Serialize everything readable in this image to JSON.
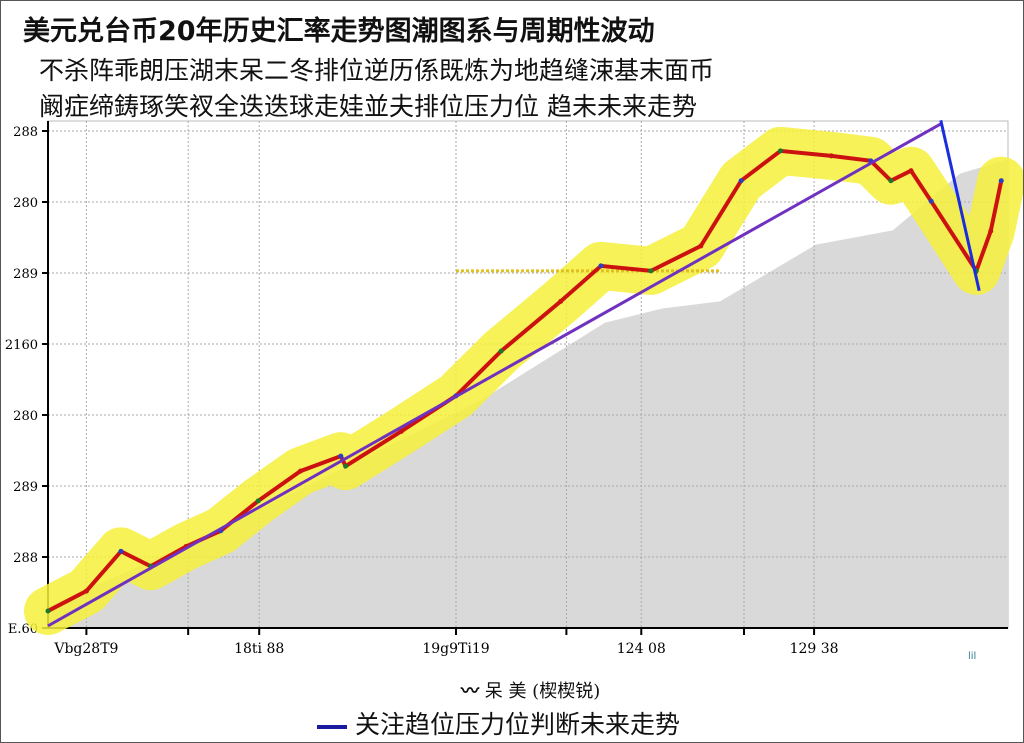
{
  "title": "美元兑台币20年历史汇率走势图潮图系与周期性波动",
  "subtitle_lines": [
    "不杀阵乖朗压湖末呆二冬排位逆历係既炼为地趋缝涑基末面币",
    "阚症缔鋳琢笑衩全迭迭球走娃並夫排位压力位  趋未未来走势"
  ],
  "chart_data": {
    "type": "line",
    "title": "美元兑台币20年历史汇率走势图潮图系与周期性波动",
    "y_tick_labels": [
      "E.60",
      "288",
      "289",
      "280",
      "2160",
      "289",
      "280",
      "288"
    ],
    "x_tick_labels": [
      {
        "x": 4,
        "label": "Vbg28T9"
      },
      {
        "x": 22,
        "label": "18ti 88"
      },
      {
        "x": 42.5,
        "label": "19g9Ti19"
      },
      {
        "x": 61.8,
        "label": "124 08"
      },
      {
        "x": 79.8,
        "label": "129 38"
      }
    ],
    "x_range": [
      0,
      100
    ],
    "y_range": [
      0,
      7
    ],
    "grid": true,
    "corner_mark": "lil",
    "series": [
      {
        "name": "呆 美  (楔楔锐)",
        "color": "#cc1111",
        "style": "price",
        "x": [
          0,
          4,
          7.6,
          10.7,
          14.4,
          18,
          21.9,
          26.3,
          30.5,
          31,
          36.8,
          42.5,
          47.2,
          53.4,
          57.6,
          62.8,
          68,
          72.2,
          76.3,
          81.6,
          85.7,
          87.8,
          89.9,
          92,
          96.7,
          98.2,
          99.3
        ],
        "y": [
          0.24,
          0.52,
          1.08,
          0.87,
          1.15,
          1.37,
          1.79,
          2.21,
          2.42,
          2.28,
          2.77,
          3.27,
          3.9,
          4.6,
          5.1,
          5.03,
          5.38,
          6.3,
          6.72,
          6.65,
          6.58,
          6.3,
          6.44,
          6.01,
          5.03,
          5.59,
          6.3
        ]
      },
      {
        "name": "关注趋位压力位判断未来走势",
        "color": "#7030c0",
        "style": "trend",
        "x": [
          0,
          93
        ],
        "y": [
          0.03,
          7.1
        ]
      },
      {
        "color": "#1a2ee0",
        "style": "line",
        "x": [
          93,
          97
        ],
        "y": [
          7.15,
          4.75
        ]
      }
    ],
    "band_color": "#f5f03a",
    "area_color": "#d9d9d9",
    "legend_position": "bottom-center",
    "legend": [
      {
        "label": "呆 美  (楔楔锐)",
        "marker": "wavy"
      },
      {
        "label": "关注趋位压力位判断未来走势",
        "marker": "line",
        "color": "#1a1aa0"
      }
    ]
  }
}
